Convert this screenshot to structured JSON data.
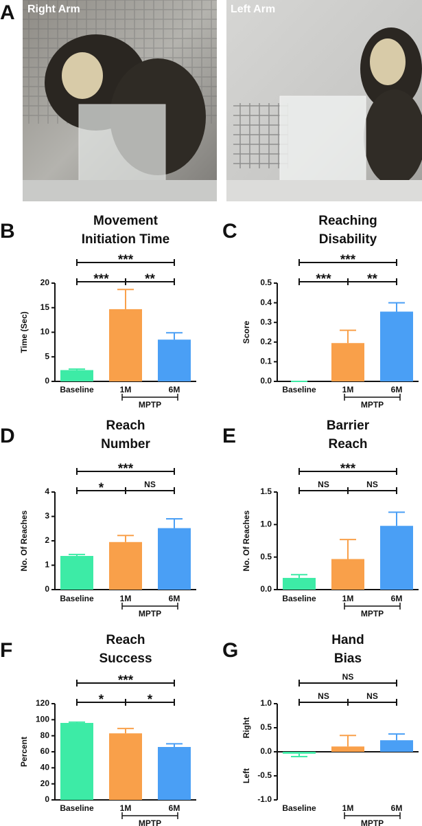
{
  "photos": {
    "panel": "A",
    "labels": [
      "Right Arm",
      "Left Arm"
    ]
  },
  "chart_data": [
    {
      "type": "bar",
      "panel": "B",
      "title": [
        "Movement",
        "Initiation Time"
      ],
      "ylabel": "Time (Sec)",
      "categories": [
        "Baseline",
        "1M",
        "6M"
      ],
      "values": [
        2.3,
        14.7,
        8.5
      ],
      "errors": [
        0.2,
        4.0,
        1.4
      ],
      "colors": [
        "#3deba6",
        "#f9a04a",
        "#4a9ff5"
      ],
      "ylim": [
        0,
        20
      ],
      "yticks": [
        0,
        5,
        10,
        15,
        20
      ],
      "group": {
        "label": "MPTP",
        "from": 1,
        "to": 2
      },
      "comparisons": [
        {
          "from": 0,
          "to": 1,
          "label": "***"
        },
        {
          "from": 1,
          "to": 2,
          "label": "**"
        },
        {
          "from": 0,
          "to": 2,
          "label": "***"
        }
      ]
    },
    {
      "type": "bar",
      "panel": "C",
      "title": [
        "Reaching",
        "Disability"
      ],
      "ylabel": "Score",
      "categories": [
        "Baseline",
        "1M",
        "6M"
      ],
      "values": [
        0,
        0.195,
        0.355
      ],
      "errors": [
        0,
        0.065,
        0.045
      ],
      "colors": [
        "#3deba6",
        "#f9a04a",
        "#4a9ff5"
      ],
      "ylim": [
        0,
        0.5
      ],
      "yticks": [
        {
          "value": 0,
          "label": "0.0"
        },
        0.1,
        0.2,
        0.3,
        0.4,
        0.5
      ],
      "group": {
        "label": "MPTP",
        "from": 1,
        "to": 2
      },
      "comparisons": [
        {
          "from": 0,
          "to": 1,
          "label": "***"
        },
        {
          "from": 1,
          "to": 2,
          "label": "**"
        },
        {
          "from": 0,
          "to": 2,
          "label": "***"
        }
      ]
    },
    {
      "type": "bar",
      "panel": "D",
      "title": [
        "Reach",
        "Number"
      ],
      "ylabel": "No. Of Reaches",
      "categories": [
        "Baseline",
        "1M",
        "6M"
      ],
      "values": [
        1.38,
        1.95,
        2.52
      ],
      "errors": [
        0.06,
        0.27,
        0.38
      ],
      "colors": [
        "#3deba6",
        "#f9a04a",
        "#4a9ff5"
      ],
      "ylim": [
        0,
        4
      ],
      "yticks": [
        0,
        1,
        2,
        3,
        4
      ],
      "group": {
        "label": "MPTP",
        "from": 1,
        "to": 2
      },
      "comparisons": [
        {
          "from": 0,
          "to": 1,
          "label": "*"
        },
        {
          "from": 1,
          "to": 2,
          "label": "NS"
        },
        {
          "from": 0,
          "to": 2,
          "label": "***"
        }
      ]
    },
    {
      "type": "bar",
      "panel": "E",
      "title": [
        "Barrier",
        "Reach"
      ],
      "ylabel": "No. Of Reaches",
      "categories": [
        "Baseline",
        "1M",
        "6M"
      ],
      "values": [
        0.18,
        0.47,
        0.98
      ],
      "errors": [
        0.05,
        0.3,
        0.21
      ],
      "colors": [
        "#3deba6",
        "#f9a04a",
        "#4a9ff5"
      ],
      "ylim": [
        0,
        1.5
      ],
      "yticks": [
        {
          "value": 0,
          "label": "0.0"
        },
        0.5,
        {
          "value": 1,
          "label": "1.0"
        },
        1.5
      ],
      "group": {
        "label": "MPTP",
        "from": 1,
        "to": 2
      },
      "comparisons": [
        {
          "from": 0,
          "to": 1,
          "label": "NS"
        },
        {
          "from": 1,
          "to": 2,
          "label": "NS"
        },
        {
          "from": 0,
          "to": 2,
          "label": "***"
        }
      ]
    },
    {
      "type": "bar",
      "panel": "F",
      "title": [
        "Reach",
        "Success"
      ],
      "ylabel": "Percent",
      "categories": [
        "Baseline",
        "1M",
        "6M"
      ],
      "values": [
        96,
        83,
        66
      ],
      "errors": [
        1,
        6,
        4
      ],
      "colors": [
        "#3deba6",
        "#f9a04a",
        "#4a9ff5"
      ],
      "ylim": [
        0,
        120
      ],
      "yticks": [
        0,
        20,
        40,
        60,
        80,
        100,
        120
      ],
      "group": {
        "label": "MPTP",
        "from": 1,
        "to": 2
      },
      "comparisons": [
        {
          "from": 0,
          "to": 1,
          "label": "*"
        },
        {
          "from": 1,
          "to": 2,
          "label": "*"
        },
        {
          "from": 0,
          "to": 2,
          "label": "***"
        }
      ]
    },
    {
      "type": "bar",
      "panel": "G",
      "title": [
        "Hand",
        "Bias"
      ],
      "ylabel_top": "Right",
      "ylabel_bottom": "Left",
      "categories": [
        "Baseline",
        "1M",
        "6M"
      ],
      "values": [
        -0.04,
        0.11,
        0.24
      ],
      "errors": [
        0.06,
        0.23,
        0.13
      ],
      "colors": [
        "#3deba6",
        "#f9a04a",
        "#4a9ff5"
      ],
      "ylim": [
        -1,
        1
      ],
      "yticks": [
        {
          "value": -1,
          "label": "-1.0"
        },
        -0.5,
        {
          "value": 0,
          "label": "0.0"
        },
        0.5,
        {
          "value": 1,
          "label": "1.0"
        }
      ],
      "group": {
        "label": "MPTP",
        "from": 1,
        "to": 2
      },
      "comparisons": [
        {
          "from": 0,
          "to": 1,
          "label": "NS"
        },
        {
          "from": 1,
          "to": 2,
          "label": "NS"
        },
        {
          "from": 0,
          "to": 2,
          "label": "NS"
        }
      ]
    }
  ]
}
